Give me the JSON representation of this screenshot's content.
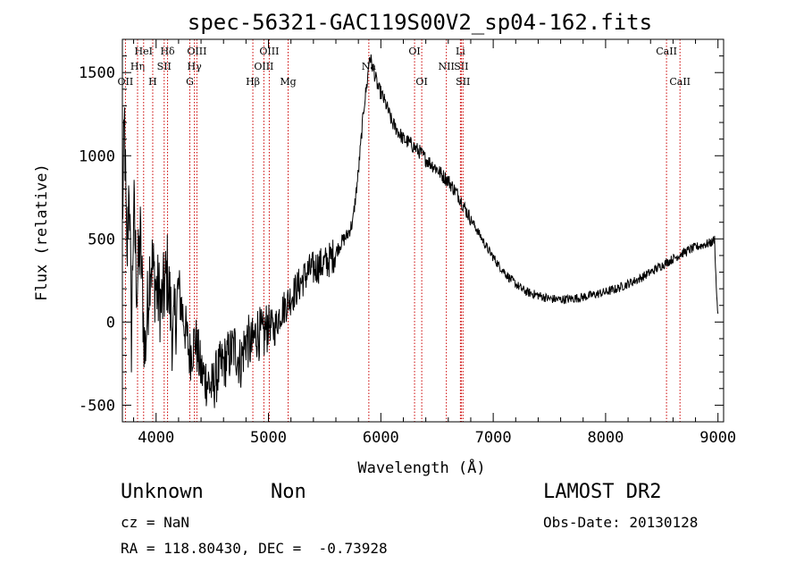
{
  "chart_data": {
    "type": "line",
    "title": "spec-56321-GAC119S00V2_sp04-162.fits",
    "xlabel": "Wavelength (Å)",
    "ylabel": "Flux (relative)",
    "xlim": [
      3700,
      9050
    ],
    "ylim": [
      -600,
      1700
    ],
    "xticks": [
      4000,
      5000,
      6000,
      7000,
      8000,
      9000
    ],
    "yticks": [
      -500,
      0,
      500,
      1000,
      1500
    ],
    "grid": false,
    "legend": "none",
    "line_color": "#000000",
    "marker_color": "#cc0000",
    "series": [
      {
        "x": [
          3700,
          3720,
          3740,
          3760,
          3780,
          3800,
          3830,
          3860,
          3900,
          3950,
          4000,
          4050,
          4100,
          4150,
          4200,
          4250,
          4300,
          4350,
          4400,
          4450,
          4500,
          4550,
          4600,
          4650,
          4700,
          4750,
          4800,
          4850,
          4900,
          4950,
          5000,
          5050,
          5100,
          5150,
          5200,
          5250,
          5300,
          5350,
          5400,
          5450,
          5500,
          5550,
          5600,
          5650,
          5700,
          5750,
          5800,
          5850,
          5880,
          5900,
          5920,
          5940,
          5960,
          5980,
          6000,
          6050,
          6100,
          6150,
          6200,
          6250,
          6300,
          6350,
          6400,
          6450,
          6500,
          6550,
          6600,
          6650,
          6700,
          6750,
          6800,
          6850,
          6900,
          6950,
          7000,
          7050,
          7100,
          7150,
          7200,
          7250,
          7300,
          7350,
          7400,
          7450,
          7500,
          7600,
          7700,
          7800,
          7900,
          8000,
          8100,
          8200,
          8300,
          8400,
          8500,
          8600,
          8700,
          8800,
          8900,
          8950,
          8970,
          8985,
          9000
        ],
        "y": [
          600,
          1200,
          300,
          900,
          -100,
          700,
          200,
          500,
          -200,
          400,
          200,
          100,
          300,
          -100,
          200,
          0,
          -200,
          -100,
          -300,
          -350,
          -400,
          -300,
          -250,
          -200,
          -150,
          -250,
          -100,
          -150,
          -50,
          -100,
          0,
          -50,
          50,
          100,
          150,
          200,
          250,
          300,
          320,
          340,
          350,
          380,
          420,
          480,
          520,
          600,
          900,
          1300,
          1450,
          1600,
          1550,
          1500,
          1450,
          1400,
          1380,
          1300,
          1200,
          1150,
          1100,
          1080,
          1050,
          1020,
          980,
          950,
          920,
          880,
          850,
          800,
          750,
          680,
          620,
          560,
          500,
          440,
          390,
          340,
          300,
          260,
          230,
          200,
          180,
          170,
          160,
          150,
          140,
          135,
          140,
          150,
          165,
          180,
          200,
          230,
          260,
          300,
          340,
          380,
          420,
          450,
          470,
          480,
          500,
          200,
          50
        ]
      }
    ],
    "line_markers": [
      {
        "wavelength": 3727,
        "label": "OII",
        "row": 3
      },
      {
        "wavelength": 3835,
        "label": "Hη",
        "row": 2
      },
      {
        "wavelength": 3889,
        "label": "HeI",
        "row": 1
      },
      {
        "wavelength": 3970,
        "label": "H",
        "row": 3
      },
      {
        "wavelength": 4072,
        "label": "SII",
        "row": 2
      },
      {
        "wavelength": 4102,
        "label": "Hδ",
        "row": 1
      },
      {
        "wavelength": 4300,
        "label": "G",
        "row": 3
      },
      {
        "wavelength": 4341,
        "label": "Hγ",
        "row": 2
      },
      {
        "wavelength": 4363,
        "label": "OIII",
        "row": 1
      },
      {
        "wavelength": 4861,
        "label": "Hβ",
        "row": 3
      },
      {
        "wavelength": 4959,
        "label": "OIII",
        "row": 2
      },
      {
        "wavelength": 5007,
        "label": "OIII",
        "row": 1
      },
      {
        "wavelength": 5175,
        "label": "Mg",
        "row": 3
      },
      {
        "wavelength": 5893,
        "label": "Na",
        "row": 2
      },
      {
        "wavelength": 6300,
        "label": "OI",
        "row": 1
      },
      {
        "wavelength": 6364,
        "label": "OI",
        "row": 3
      },
      {
        "wavelength": 6583,
        "label": "NII",
        "row": 2
      },
      {
        "wavelength": 6708,
        "label": "Li",
        "row": 1
      },
      {
        "wavelength": 6716,
        "label": "SII",
        "row": 2
      },
      {
        "wavelength": 6731,
        "label": "SII",
        "row": 3
      },
      {
        "wavelength": 8542,
        "label": "CaII",
        "row": 1
      },
      {
        "wavelength": 8662,
        "label": "CaII",
        "row": 3
      }
    ]
  },
  "info": {
    "classification": "Unknown",
    "subclass": "Non",
    "survey": "LAMOST DR2",
    "cz": "cz = NaN",
    "obs_date": "Obs-Date: 20130128",
    "coords": "RA = 118.80430, DEC =  -0.73928"
  }
}
